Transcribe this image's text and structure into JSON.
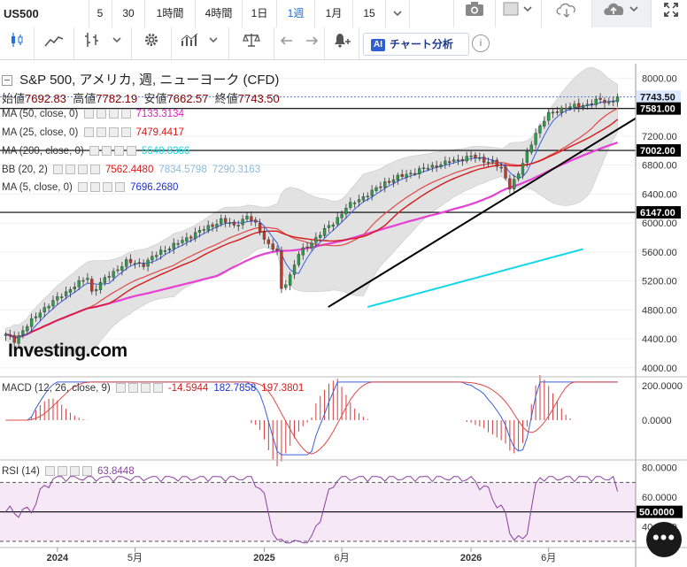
{
  "toolbar": {
    "symbol": "US500",
    "intervals": [
      "5",
      "30",
      "1時間",
      "4時間",
      "1日",
      "1週",
      "1月",
      "15"
    ],
    "active_interval": "1週",
    "ai_button_label": "チャート分析",
    "ai_badge": "AI",
    "info_label": "i"
  },
  "header": {
    "title": "S&P 500, アメリカ, 週, ニューヨーク (CFD)",
    "ohlc": [
      {
        "label": "始値",
        "value": "7692.83"
      },
      {
        "label": "高値",
        "value": "7782.19"
      },
      {
        "label": "安値",
        "value": "7662.57"
      },
      {
        "label": "終値",
        "value": "7743.50"
      }
    ]
  },
  "indicators": [
    {
      "name": "MA (50, close, 0)",
      "values": [
        "7133.3134"
      ],
      "colors": [
        "#e020c0"
      ]
    },
    {
      "name": "MA (25, close, 0)",
      "values": [
        "7479.4417"
      ],
      "colors": [
        "#d61a1a"
      ]
    },
    {
      "name": "MA (200, close, 0)",
      "values": [
        "5640.8366"
      ],
      "colors": [
        "#14d8e8"
      ]
    },
    {
      "name": "BB (20, 2)",
      "values": [
        "7562.4480",
        "7834.5798",
        "7290.3163"
      ],
      "colors": [
        "#d61a1a",
        "#9ec9e6",
        "#9ec9e6"
      ]
    },
    {
      "name": "MA (5, close, 0)",
      "values": [
        "7696.2680"
      ],
      "colors": [
        "#1f2fd6"
      ]
    }
  ],
  "watermark": "Investing.com",
  "chart_data": {
    "type": "line",
    "description_series": "weekly S&P 500 candles with moving averages and Bollinger bands",
    "x_ticks": [
      "2024",
      "5月",
      "2025",
      "6月",
      "2026",
      "6月"
    ],
    "y_ticks": [
      4000,
      4400,
      4800,
      5200,
      5600,
      6000,
      6400,
      6800,
      7200,
      7600,
      8000
    ],
    "ylim": [
      3900,
      8200
    ],
    "price_tags": [
      {
        "value": 7743.5,
        "label": "7743.50",
        "style": "current"
      },
      {
        "value": 7581.0,
        "label": "7581.00",
        "style": "level"
      },
      {
        "value": 7002.0,
        "label": "7002.00",
        "style": "level"
      },
      {
        "value": 6147.0,
        "label": "6147.00",
        "style": "level"
      }
    ],
    "weeks": 143,
    "close_anchor": [
      [
        0,
        4450
      ],
      [
        2,
        4380
      ],
      [
        8,
        4780
      ],
      [
        14,
        5050
      ],
      [
        19,
        5250
      ],
      [
        20,
        5050
      ],
      [
        24,
        5280
      ],
      [
        28,
        5460
      ],
      [
        32,
        5430
      ],
      [
        36,
        5610
      ],
      [
        40,
        5720
      ],
      [
        44,
        5860
      ],
      [
        48,
        5970
      ],
      [
        50,
        6040
      ],
      [
        53,
        5960
      ],
      [
        56,
        6090
      ],
      [
        58,
        5980
      ],
      [
        61,
        5700
      ],
      [
        63,
        5600
      ],
      [
        64,
        5080
      ],
      [
        66,
        5280
      ],
      [
        68,
        5570
      ],
      [
        70,
        5680
      ],
      [
        73,
        5850
      ],
      [
        76,
        6000
      ],
      [
        79,
        6210
      ],
      [
        82,
        6330
      ],
      [
        85,
        6430
      ],
      [
        88,
        6560
      ],
      [
        92,
        6650
      ],
      [
        96,
        6730
      ],
      [
        100,
        6800
      ],
      [
        104,
        6860
      ],
      [
        108,
        6920
      ],
      [
        110,
        6880
      ],
      [
        113,
        6840
      ],
      [
        115,
        6740
      ],
      [
        117,
        6500
      ],
      [
        119,
        6680
      ],
      [
        121,
        6960
      ],
      [
        123,
        7250
      ],
      [
        126,
        7500
      ],
      [
        129,
        7580
      ],
      [
        132,
        7610
      ],
      [
        135,
        7640
      ],
      [
        138,
        7700
      ],
      [
        140,
        7660
      ],
      [
        142,
        7743.5
      ]
    ],
    "trend_line": {
      "from": [
        5.0,
        4840
      ],
      "to": [
        86.0,
        7250
      ]
    },
    "macd": {
      "name": "MACD (12, 26, close, 9)",
      "values": [
        "-14.5944",
        "182.7858",
        "197.3801"
      ],
      "colors": [
        "#d61a1a",
        "#1f2fd6",
        "#d61a1a"
      ],
      "y_ticks": [
        0,
        200
      ],
      "ylim": [
        -220,
        240
      ]
    },
    "rsi": {
      "name": "RSI (14)",
      "value": "63.8448",
      "y_ticks": [
        40,
        60,
        80
      ],
      "level_tag": "50.0000",
      "ylim": [
        27,
        84
      ]
    }
  }
}
